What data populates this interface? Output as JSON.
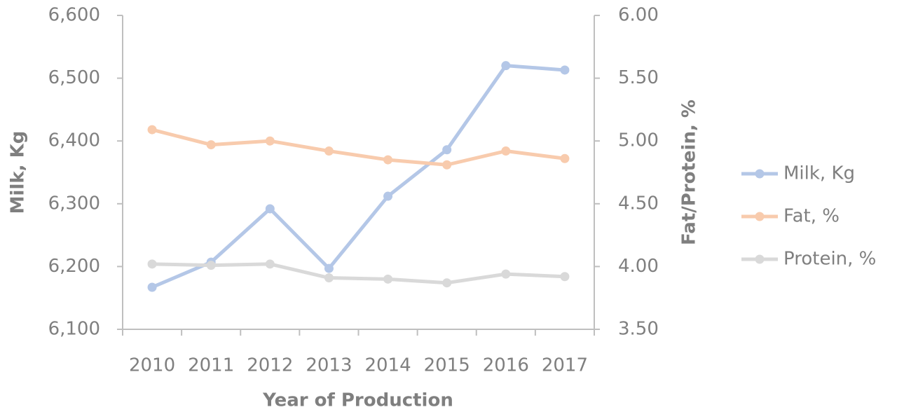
{
  "chart_data": {
    "type": "line",
    "x_label": "Year of Production",
    "y_label": "Milk, Kg",
    "y2_label": "Fat/Protein, %",
    "categories": [
      "2010",
      "2011",
      "2012",
      "2013",
      "2014",
      "2015",
      "2016",
      "2017"
    ],
    "series": [
      {
        "name": "Milk, Kg",
        "color": "#b4c7e7",
        "values": [
          6167,
          6207,
          6292,
          6197,
          6312,
          6386,
          6520,
          6513
        ]
      },
      {
        "name": "Fat, %",
        "color": "#f8cbad",
        "axis": "y2",
        "values": [
          5.09,
          4.97,
          5.0,
          4.92,
          4.85,
          4.81,
          4.92,
          4.86
        ]
      },
      {
        "name": "Protein, %",
        "color": "#d9d9d9",
        "axis": "y2",
        "values": [
          4.02,
          4.01,
          4.02,
          3.91,
          3.9,
          3.87,
          3.94,
          3.92
        ]
      }
    ],
    "ylim": [
      6100,
      6600
    ],
    "yticks": [
      {
        "value": 6100,
        "label": "6,100"
      },
      {
        "value": 6200,
        "label": "6,200"
      },
      {
        "value": 6300,
        "label": "6,300"
      },
      {
        "value": 6400,
        "label": "6,400"
      },
      {
        "value": 6500,
        "label": "6,500"
      },
      {
        "value": 6600,
        "label": "6,600"
      }
    ],
    "y2lim": [
      3.5,
      6
    ],
    "y2ticks": [
      {
        "value": 3.5,
        "label": "3.50"
      },
      {
        "value": 4,
        "label": "4.00"
      },
      {
        "value": 4.5,
        "label": "4.50"
      },
      {
        "value": 5,
        "label": "5.00"
      },
      {
        "value": 5.5,
        "label": "5.50"
      },
      {
        "value": 6,
        "label": "6.00"
      }
    ],
    "grid": false,
    "legend": "right"
  }
}
